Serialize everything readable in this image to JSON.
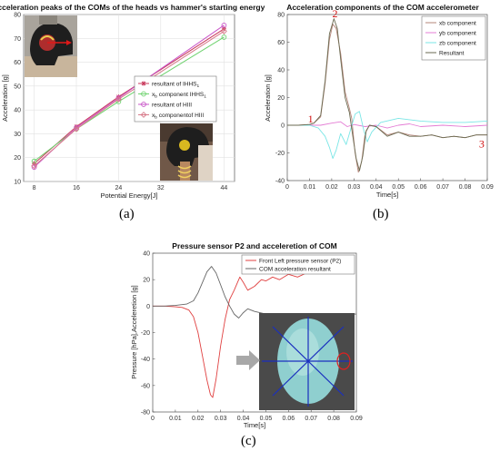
{
  "captions": {
    "a": "(a)",
    "b": "(b)",
    "c": "(c)"
  },
  "colors": {
    "ihhs_resultant": "#c8375a",
    "ihhs_xb": "#6ed26e",
    "hiii_resultant": "#c855c8",
    "hiii_xb": "#d87a8a",
    "xb": "#b5857a",
    "yb": "#e47cd4",
    "zb": "#7ae6e6",
    "resultant_b": "#6a6a50",
    "pressure": "#e04040",
    "com_resultant": "#666666"
  },
  "chart_data": [
    {
      "id": "a",
      "type": "line",
      "title": "acceleration peaks of the COMs of the heads vs hammer's starting energy",
      "xlabel": "Potential Energy[J]",
      "ylabel": "Acceleration [g]",
      "xlim": [
        6,
        46
      ],
      "ylim": [
        10,
        80
      ],
      "xticks": [
        8,
        16,
        24,
        32,
        44
      ],
      "yticks": [
        10,
        20,
        30,
        40,
        50,
        60,
        70,
        80
      ],
      "grid": true,
      "legend_position": "right",
      "x": [
        8,
        16,
        24,
        44
      ],
      "series": [
        {
          "name": "resultant of IHHS",
          "sub": "1",
          "values": [
            17.5,
            33,
            45.5,
            74
          ],
          "marker": "star"
        },
        {
          "name": "x",
          "sub": "b",
          "name_suffix": " component IHHS",
          "sub2": "1",
          "values": [
            18.5,
            32,
            43.5,
            70.5
          ],
          "marker": "circle"
        },
        {
          "name": "resultant of HIII",
          "values": [
            16,
            32.5,
            45,
            75.5
          ],
          "marker": "circle"
        },
        {
          "name": "x",
          "sub": "b",
          "name_suffix": " componentof HIII",
          "values": [
            16.5,
            32,
            44.5,
            73
          ],
          "marker": "diamond"
        }
      ]
    },
    {
      "id": "b",
      "type": "line",
      "title": "Acceleration components of the COM accelerometer",
      "xlabel": "Time[s]",
      "ylabel": "Acceleration [g]",
      "xlim": [
        0,
        0.09
      ],
      "ylim": [
        -40,
        80
      ],
      "xticks": [
        "0",
        "0.01",
        "0.02",
        "0.03",
        "0.04",
        "0.05",
        "0.06",
        "0.07",
        "0.08",
        "0.09"
      ],
      "yticks": [
        "-40",
        "-20",
        "0",
        "20",
        "40",
        "60",
        "80"
      ],
      "grid": false,
      "legend_position": "top-right",
      "annotations": [
        "1",
        "2",
        "3"
      ],
      "annotation_points": [
        [
          0.0105,
          2
        ],
        [
          0.0215,
          78
        ],
        [
          0.0875,
          -16
        ]
      ],
      "series": [
        {
          "name": "xb component",
          "points": [
            [
              0,
              0
            ],
            [
              0.005,
              0
            ],
            [
              0.01,
              0.5
            ],
            [
              0.012,
              1.5
            ],
            [
              0.015,
              6
            ],
            [
              0.017,
              30
            ],
            [
              0.019,
              62
            ],
            [
              0.0205,
              73
            ],
            [
              0.022,
              70
            ],
            [
              0.024,
              52
            ],
            [
              0.026,
              24
            ],
            [
              0.028,
              12
            ],
            [
              0.029,
              5
            ],
            [
              0.0305,
              -20
            ],
            [
              0.032,
              -34
            ],
            [
              0.0335,
              -26
            ],
            [
              0.035,
              -6
            ],
            [
              0.037,
              0
            ],
            [
              0.04,
              -1
            ],
            [
              0.045,
              -7
            ],
            [
              0.05,
              -5
            ],
            [
              0.055,
              -7
            ],
            [
              0.06,
              -8
            ],
            [
              0.065,
              -7
            ],
            [
              0.07,
              -9
            ],
            [
              0.075,
              -8
            ],
            [
              0.08,
              -9
            ],
            [
              0.085,
              -7
            ],
            [
              0.09,
              -7
            ]
          ]
        },
        {
          "name": "yb component",
          "points": [
            [
              0,
              0
            ],
            [
              0.005,
              0
            ],
            [
              0.01,
              0
            ],
            [
              0.015,
              0
            ],
            [
              0.02,
              1.5
            ],
            [
              0.024,
              2.5
            ],
            [
              0.027,
              -1
            ],
            [
              0.03,
              0.5
            ],
            [
              0.035,
              -1
            ],
            [
              0.04,
              0
            ],
            [
              0.045,
              -2
            ],
            [
              0.05,
              0
            ],
            [
              0.055,
              1
            ],
            [
              0.06,
              -1
            ],
            [
              0.07,
              0
            ],
            [
              0.08,
              -1
            ],
            [
              0.09,
              0
            ]
          ]
        },
        {
          "name": "zb component",
          "points": [
            [
              0,
              0
            ],
            [
              0.005,
              0
            ],
            [
              0.01,
              0
            ],
            [
              0.014,
              -2
            ],
            [
              0.017,
              -8
            ],
            [
              0.019,
              -16
            ],
            [
              0.0205,
              -24
            ],
            [
              0.022,
              -18
            ],
            [
              0.024,
              -6
            ],
            [
              0.0265,
              -14
            ],
            [
              0.0285,
              -3
            ],
            [
              0.0305,
              8
            ],
            [
              0.0325,
              10
            ],
            [
              0.0345,
              -4
            ],
            [
              0.036,
              -12
            ],
            [
              0.038,
              -5
            ],
            [
              0.042,
              2
            ],
            [
              0.05,
              5
            ],
            [
              0.055,
              4
            ],
            [
              0.06,
              3
            ],
            [
              0.07,
              2
            ],
            [
              0.08,
              2
            ],
            [
              0.09,
              3
            ]
          ]
        },
        {
          "name": "Resultant",
          "points": [
            [
              0,
              0
            ],
            [
              0.005,
              0
            ],
            [
              0.01,
              0.5
            ],
            [
              0.012,
              1.5
            ],
            [
              0.015,
              7
            ],
            [
              0.017,
              32
            ],
            [
              0.019,
              66
            ],
            [
              0.021,
              77
            ],
            [
              0.0225,
              70
            ],
            [
              0.024,
              48
            ],
            [
              0.026,
              20
            ],
            [
              0.028,
              9
            ],
            [
              0.0295,
              -8
            ],
            [
              0.031,
              -24
            ],
            [
              0.0325,
              -33
            ],
            [
              0.034,
              -22
            ],
            [
              0.0355,
              -4
            ],
            [
              0.037,
              0
            ],
            [
              0.04,
              -1
            ],
            [
              0.045,
              -8
            ],
            [
              0.05,
              -5
            ],
            [
              0.055,
              -8
            ],
            [
              0.06,
              -8
            ],
            [
              0.065,
              -7
            ],
            [
              0.07,
              -9
            ],
            [
              0.075,
              -8
            ],
            [
              0.08,
              -9
            ],
            [
              0.085,
              -7
            ],
            [
              0.09,
              -7
            ]
          ]
        }
      ]
    },
    {
      "id": "c",
      "type": "line",
      "title": "Pressure sensor P2 and acceleretion of COM",
      "xlabel": "Time[s]",
      "ylabel": "Pressure [hPa],Acceleretion [g]",
      "xlim": [
        0,
        0.09
      ],
      "ylim": [
        -80,
        40
      ],
      "xticks": [
        "0",
        "0.01",
        "0.02",
        "0.03",
        "0.04",
        "0.05",
        "0.06",
        "0.07",
        "0.08",
        "0.09"
      ],
      "yticks": [
        "-80",
        "-60",
        "-40",
        "-20",
        "0",
        "20",
        "40"
      ],
      "grid": false,
      "legend_position": "top-right",
      "series": [
        {
          "name": "Front Left pressure sensor (P2)",
          "points": [
            [
              0,
              0
            ],
            [
              0.005,
              0
            ],
            [
              0.01,
              -0.5
            ],
            [
              0.013,
              -1
            ],
            [
              0.016,
              -3
            ],
            [
              0.018,
              -8
            ],
            [
              0.02,
              -20
            ],
            [
              0.022,
              -38
            ],
            [
              0.024,
              -56
            ],
            [
              0.0255,
              -67
            ],
            [
              0.0265,
              -69
            ],
            [
              0.028,
              -55
            ],
            [
              0.03,
              -30
            ],
            [
              0.032,
              -10
            ],
            [
              0.034,
              5
            ],
            [
              0.036,
              12
            ],
            [
              0.0385,
              22
            ],
            [
              0.04,
              18
            ],
            [
              0.042,
              12
            ],
            [
              0.045,
              15
            ],
            [
              0.048,
              20
            ],
            [
              0.05,
              19
            ],
            [
              0.053,
              22
            ],
            [
              0.056,
              20
            ],
            [
              0.06,
              24
            ],
            [
              0.064,
              22
            ],
            [
              0.068,
              25
            ]
          ]
        },
        {
          "name": "COM acceleration resultant",
          "points": [
            [
              0,
              0
            ],
            [
              0.005,
              0
            ],
            [
              0.01,
              0.5
            ],
            [
              0.015,
              1.5
            ],
            [
              0.018,
              4
            ],
            [
              0.02,
              10
            ],
            [
              0.022,
              18
            ],
            [
              0.024,
              26
            ],
            [
              0.026,
              30
            ],
            [
              0.028,
              25
            ],
            [
              0.03,
              16
            ],
            [
              0.032,
              7
            ],
            [
              0.034,
              0
            ],
            [
              0.036,
              -6
            ],
            [
              0.038,
              -9
            ],
            [
              0.04,
              -5
            ],
            [
              0.042,
              -2
            ],
            [
              0.045,
              -4
            ],
            [
              0.05,
              -6
            ],
            [
              0.055,
              -7
            ],
            [
              0.06,
              -8
            ],
            [
              0.065,
              -7
            ],
            [
              0.07,
              -7
            ],
            [
              0.075,
              -6
            ],
            [
              0.08,
              -7
            ],
            [
              0.085,
              -6
            ],
            [
              0.09,
              -6
            ]
          ]
        }
      ]
    }
  ]
}
